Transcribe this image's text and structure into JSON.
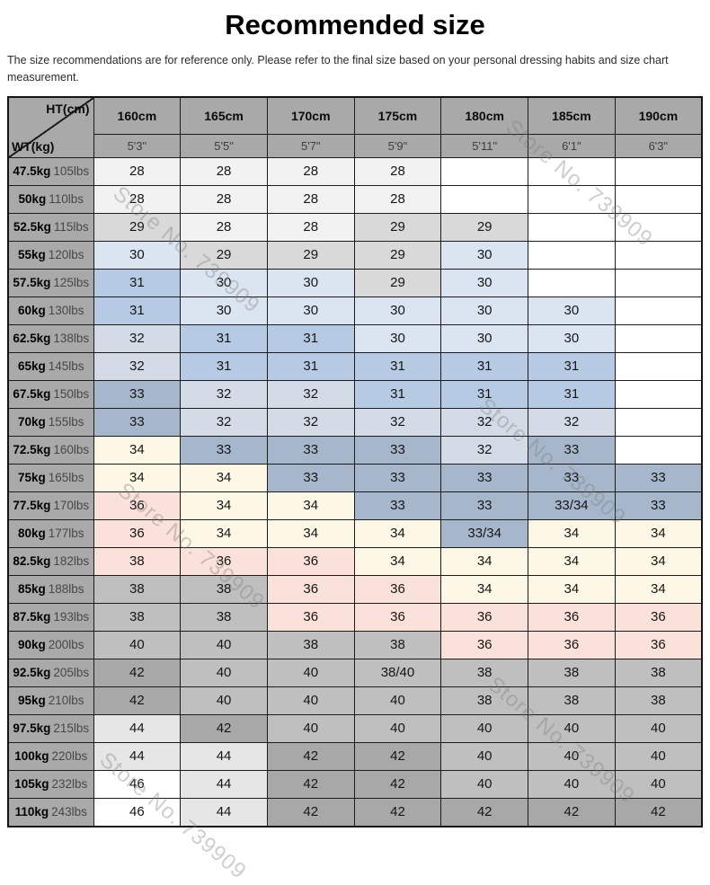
{
  "title": "Recommended size",
  "disclaimer": "The size recommendations are for reference only. Please refer to the final size based on your personal dressing habits and size chart measurement.",
  "watermark": {
    "text": "Store No. 739909"
  },
  "colors": {
    "header_bg": "#a9a9a9",
    "palette": {
      "w": "#ffffff",
      "f": "#f2f2f2",
      "lg": "#e6e6e6",
      "g": "#d9d9d9",
      "m": "#bfbfbf",
      "d": "#a8a8a8",
      "lb": "#dbe5f1",
      "mb": "#b6cbe3",
      "gb": "#d3dbe6",
      "sb": "#a7b7cb",
      "cr": "#fcf8e5",
      "pk": "#fae1d9"
    }
  },
  "table": {
    "corner": {
      "top_label": "HT(cm)",
      "bottom_label": "WT(kg)"
    },
    "height_headers_cm": [
      "160cm",
      "165cm",
      "170cm",
      "175cm",
      "180cm",
      "185cm",
      "190cm"
    ],
    "height_headers_ft": [
      "5'3\"",
      "5'5\"",
      "5'7\"",
      "5'9\"",
      "5'11\"",
      "6'1\"",
      "6'3\""
    ],
    "rows": [
      {
        "kg": "47.5kg",
        "lbs": "105lbs",
        "cells": [
          [
            "28",
            "f"
          ],
          [
            "28",
            "f"
          ],
          [
            "28",
            "f"
          ],
          [
            "28",
            "f"
          ],
          [
            "",
            "w"
          ],
          [
            "",
            "w"
          ],
          [
            "",
            "w"
          ]
        ]
      },
      {
        "kg": "50kg",
        "lbs": "110lbs",
        "cells": [
          [
            "28",
            "f"
          ],
          [
            "28",
            "f"
          ],
          [
            "28",
            "f"
          ],
          [
            "28",
            "f"
          ],
          [
            "",
            "w"
          ],
          [
            "",
            "w"
          ],
          [
            "",
            "w"
          ]
        ]
      },
      {
        "kg": "52.5kg",
        "lbs": "115lbs",
        "cells": [
          [
            "29",
            "g"
          ],
          [
            "28",
            "f"
          ],
          [
            "28",
            "f"
          ],
          [
            "29",
            "g"
          ],
          [
            "29",
            "g"
          ],
          [
            "",
            "w"
          ],
          [
            "",
            "w"
          ]
        ]
      },
      {
        "kg": "55kg",
        "lbs": "120lbs",
        "cells": [
          [
            "30",
            "lb"
          ],
          [
            "29",
            "g"
          ],
          [
            "29",
            "g"
          ],
          [
            "29",
            "g"
          ],
          [
            "30",
            "lb"
          ],
          [
            "",
            "w"
          ],
          [
            "",
            "w"
          ]
        ]
      },
      {
        "kg": "57.5kg",
        "lbs": "125lbs",
        "cells": [
          [
            "31",
            "mb"
          ],
          [
            "30",
            "lb"
          ],
          [
            "30",
            "lb"
          ],
          [
            "29",
            "g"
          ],
          [
            "30",
            "lb"
          ],
          [
            "",
            "w"
          ],
          [
            "",
            "w"
          ]
        ]
      },
      {
        "kg": "60kg",
        "lbs": "130lbs",
        "cells": [
          [
            "31",
            "mb"
          ],
          [
            "30",
            "lb"
          ],
          [
            "30",
            "lb"
          ],
          [
            "30",
            "lb"
          ],
          [
            "30",
            "lb"
          ],
          [
            "30",
            "lb"
          ],
          [
            "",
            "w"
          ]
        ]
      },
      {
        "kg": "62.5kg",
        "lbs": "138lbs",
        "cells": [
          [
            "32",
            "gb"
          ],
          [
            "31",
            "mb"
          ],
          [
            "31",
            "mb"
          ],
          [
            "30",
            "lb"
          ],
          [
            "30",
            "lb"
          ],
          [
            "30",
            "lb"
          ],
          [
            "",
            "w"
          ]
        ]
      },
      {
        "kg": "65kg",
        "lbs": "145lbs",
        "cells": [
          [
            "32",
            "gb"
          ],
          [
            "31",
            "mb"
          ],
          [
            "31",
            "mb"
          ],
          [
            "31",
            "mb"
          ],
          [
            "31",
            "mb"
          ],
          [
            "31",
            "mb"
          ],
          [
            "",
            "w"
          ]
        ]
      },
      {
        "kg": "67.5kg",
        "lbs": "150lbs",
        "cells": [
          [
            "33",
            "sb"
          ],
          [
            "32",
            "gb"
          ],
          [
            "32",
            "gb"
          ],
          [
            "31",
            "mb"
          ],
          [
            "31",
            "mb"
          ],
          [
            "31",
            "mb"
          ],
          [
            "",
            "w"
          ]
        ]
      },
      {
        "kg": "70kg",
        "lbs": "155lbs",
        "cells": [
          [
            "33",
            "sb"
          ],
          [
            "32",
            "gb"
          ],
          [
            "32",
            "gb"
          ],
          [
            "32",
            "gb"
          ],
          [
            "32",
            "gb"
          ],
          [
            "32",
            "gb"
          ],
          [
            "",
            "w"
          ]
        ]
      },
      {
        "kg": "72.5kg",
        "lbs": "160lbs",
        "cells": [
          [
            "34",
            "cr"
          ],
          [
            "33",
            "sb"
          ],
          [
            "33",
            "sb"
          ],
          [
            "33",
            "sb"
          ],
          [
            "32",
            "gb"
          ],
          [
            "33",
            "sb"
          ],
          [
            "",
            "w"
          ]
        ]
      },
      {
        "kg": "75kg",
        "lbs": "165lbs",
        "cells": [
          [
            "34",
            "cr"
          ],
          [
            "34",
            "cr"
          ],
          [
            "33",
            "sb"
          ],
          [
            "33",
            "sb"
          ],
          [
            "33",
            "sb"
          ],
          [
            "33",
            "sb"
          ],
          [
            "33",
            "sb"
          ]
        ]
      },
      {
        "kg": "77.5kg",
        "lbs": "170lbs",
        "cells": [
          [
            "36",
            "pk"
          ],
          [
            "34",
            "cr"
          ],
          [
            "34",
            "cr"
          ],
          [
            "33",
            "sb"
          ],
          [
            "33",
            "sb"
          ],
          [
            "33/34",
            "sb"
          ],
          [
            "33",
            "sb"
          ]
        ]
      },
      {
        "kg": "80kg",
        "lbs": "177lbs",
        "cells": [
          [
            "36",
            "pk"
          ],
          [
            "34",
            "cr"
          ],
          [
            "34",
            "cr"
          ],
          [
            "34",
            "cr"
          ],
          [
            "33/34",
            "sb"
          ],
          [
            "34",
            "cr"
          ],
          [
            "34",
            "cr"
          ]
        ]
      },
      {
        "kg": "82.5kg",
        "lbs": "182lbs",
        "cells": [
          [
            "38",
            "pk"
          ],
          [
            "36",
            "pk"
          ],
          [
            "36",
            "pk"
          ],
          [
            "34",
            "cr"
          ],
          [
            "34",
            "cr"
          ],
          [
            "34",
            "cr"
          ],
          [
            "34",
            "cr"
          ]
        ]
      },
      {
        "kg": "85kg",
        "lbs": "188lbs",
        "cells": [
          [
            "38",
            "m"
          ],
          [
            "38",
            "m"
          ],
          [
            "36",
            "pk"
          ],
          [
            "36",
            "pk"
          ],
          [
            "34",
            "cr"
          ],
          [
            "34",
            "cr"
          ],
          [
            "34",
            "cr"
          ]
        ]
      },
      {
        "kg": "87.5kg",
        "lbs": "193lbs",
        "cells": [
          [
            "38",
            "m"
          ],
          [
            "38",
            "m"
          ],
          [
            "36",
            "pk"
          ],
          [
            "36",
            "pk"
          ],
          [
            "36",
            "pk"
          ],
          [
            "36",
            "pk"
          ],
          [
            "36",
            "pk"
          ]
        ]
      },
      {
        "kg": "90kg",
        "lbs": "200lbs",
        "cells": [
          [
            "40",
            "m"
          ],
          [
            "40",
            "m"
          ],
          [
            "38",
            "m"
          ],
          [
            "38",
            "m"
          ],
          [
            "36",
            "pk"
          ],
          [
            "36",
            "pk"
          ],
          [
            "36",
            "pk"
          ]
        ]
      },
      {
        "kg": "92.5kg",
        "lbs": "205lbs",
        "cells": [
          [
            "42",
            "d"
          ],
          [
            "40",
            "m"
          ],
          [
            "40",
            "m"
          ],
          [
            "38/40",
            "m"
          ],
          [
            "38",
            "m"
          ],
          [
            "38",
            "m"
          ],
          [
            "38",
            "m"
          ]
        ]
      },
      {
        "kg": "95kg",
        "lbs": "210lbs",
        "cells": [
          [
            "42",
            "d"
          ],
          [
            "40",
            "m"
          ],
          [
            "40",
            "m"
          ],
          [
            "40",
            "m"
          ],
          [
            "38",
            "m"
          ],
          [
            "38",
            "m"
          ],
          [
            "38",
            "m"
          ]
        ]
      },
      {
        "kg": "97.5kg",
        "lbs": "215lbs",
        "cells": [
          [
            "44",
            "lg"
          ],
          [
            "42",
            "d"
          ],
          [
            "40",
            "m"
          ],
          [
            "40",
            "m"
          ],
          [
            "40",
            "m"
          ],
          [
            "40",
            "m"
          ],
          [
            "40",
            "m"
          ]
        ]
      },
      {
        "kg": "100kg",
        "lbs": "220lbs",
        "cells": [
          [
            "44",
            "lg"
          ],
          [
            "44",
            "lg"
          ],
          [
            "42",
            "d"
          ],
          [
            "42",
            "d"
          ],
          [
            "40",
            "m"
          ],
          [
            "40",
            "m"
          ],
          [
            "40",
            "m"
          ]
        ]
      },
      {
        "kg": "105kg",
        "lbs": "232lbs",
        "cells": [
          [
            "46",
            "w"
          ],
          [
            "44",
            "lg"
          ],
          [
            "42",
            "d"
          ],
          [
            "42",
            "d"
          ],
          [
            "40",
            "m"
          ],
          [
            "40",
            "m"
          ],
          [
            "40",
            "m"
          ]
        ]
      },
      {
        "kg": "110kg",
        "lbs": "243lbs",
        "cells": [
          [
            "46",
            "w"
          ],
          [
            "44",
            "lg"
          ],
          [
            "42",
            "d"
          ],
          [
            "42",
            "d"
          ],
          [
            "42",
            "d"
          ],
          [
            "42",
            "d"
          ],
          [
            "42",
            "d"
          ]
        ]
      }
    ]
  }
}
